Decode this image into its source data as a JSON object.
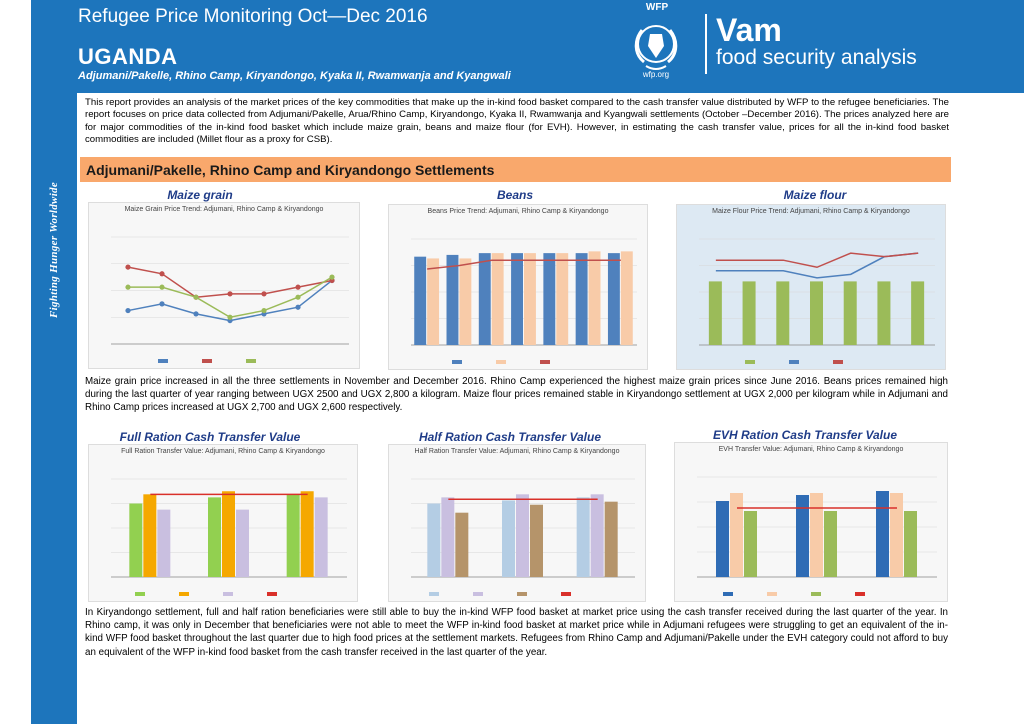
{
  "header": {
    "title": "Refugee Price Monitoring Oct—Dec 2016",
    "country": "UGANDA",
    "subtitle": "Adjumani/Pakelle, Rhino Camp, Kiryandongo, Kyaka II, Rwamwanja and Kyangwali",
    "wfp_name": "WFP",
    "wfp_url": "wfp.org",
    "brand": "Vam",
    "brand_sub": "food security analysis"
  },
  "sidebar": {
    "tagline": "Fighting Hunger Worldwide"
  },
  "intro": "This report provides an analysis of the market prices of the key commodities that make up the in-kind food basket compared to the cash transfer value distributed by WFP to the refugee beneficiaries. The report focuses on price data collected from Adjumani/Pakelle, Arua/Rhino Camp, Kiryandongo, Kyaka II, Rwamwanja and Kyangwali settlements (October –December 2016). The prices analyzed here are for major commodities of the in-kind food basket which include maize grain, beans and maize flour (for EVH). However, in estimating the cash transfer value, prices for all the in-kind food basket commodities are included (Millet flour as a proxy for CSB).",
  "section": {
    "title": "Adjumani/Pakelle,  Rhino Camp and Kiryandongo Settlements"
  },
  "chart_titles": {
    "maize_grain": "Maize grain",
    "beans": "Beans",
    "maize_flour": "Maize flour",
    "full_ration": "Full Ration Cash Transfer Value",
    "half_ration": "Half Ration Cash Transfer Value",
    "evh_ration": "EVH Ration Cash Transfer Value"
  },
  "chart_captions": {
    "maize_grain": "Maize Grain Price Trend: Adjumani, Rhino Camp & Kiryandongo",
    "beans": "Beans Price Trend: Adjumani, Rhino Camp & Kiryandongo",
    "maize_flour": "Maize Flour Price Trend: Adjumani, Rhino Camp & Kiryandongo",
    "full_ration": "Full Ration Transfer Value: Adjumani, Rhino Camp & Kiryandongo",
    "half_ration": "Half Ration Transfer Value: Adjumani, Rhino Camp & Kiryandongo",
    "evh_ration": "EVH Transfer Value: Adjumani, Rhino Camp & Kiryandongo"
  },
  "colors": {
    "brand_blue": "#1d75bc",
    "section_orange": "#f9a86c",
    "chart_title_blue": "#1f3c88",
    "red_line": "#d9302a"
  },
  "chart_data": [
    {
      "id": "maize_grain",
      "type": "line",
      "series": [
        {
          "values": [
            1100,
            1200,
            1050,
            950,
            1050,
            1150,
            1550
          ],
          "color": "#4f81bd"
        },
        {
          "values": [
            1750,
            1650,
            1300,
            1350,
            1350,
            1450,
            1550
          ],
          "color": "#c0504d"
        },
        {
          "values": [
            1450,
            1450,
            1300,
            1000,
            1100,
            1300,
            1600
          ],
          "color": "#9bbb59"
        }
      ],
      "ylim": [
        600,
        2200
      ]
    },
    {
      "id": "beans",
      "type": "bar",
      "series": [
        {
          "values": [
            2500,
            2550,
            2600,
            2600,
            2600,
            2600,
            2600
          ],
          "color": "#4f81bd",
          "kind": "bar"
        },
        {
          "values": [
            2450,
            2450,
            2600,
            2600,
            2600,
            2650,
            2650
          ],
          "color": "#f8cba8",
          "kind": "bar"
        },
        {
          "values": [
            2150,
            2250,
            2400,
            2400,
            2400,
            2400,
            2400
          ],
          "color": "#c0504d",
          "kind": "line"
        }
      ],
      "ylim": [
        0,
        3000
      ]
    },
    {
      "id": "maize_flour",
      "type": "bar",
      "series": [
        {
          "values": [
            1800,
            1800,
            1800,
            1800,
            1800,
            1800,
            1800
          ],
          "color": "#9bbb59",
          "kind": "bar"
        },
        {
          "values": [
            2100,
            2100,
            2100,
            1900,
            2000,
            2500,
            2600
          ],
          "color": "#4f81bd",
          "kind": "line"
        },
        {
          "values": [
            2400,
            2400,
            2400,
            2200,
            2600,
            2500,
            2600
          ],
          "color": "#c0504d",
          "kind": "line"
        }
      ],
      "ylim": [
        0,
        3000
      ]
    },
    {
      "id": "full_ration",
      "type": "bar",
      "series": [
        {
          "values": [
            24,
            26,
            27
          ],
          "color": "#92d050",
          "kind": "bar"
        },
        {
          "values": [
            27,
            28,
            28
          ],
          "color": "#f5a800",
          "kind": "bar"
        },
        {
          "values": [
            22,
            22,
            26
          ],
          "color": "#c9bfe0",
          "kind": "bar"
        },
        {
          "values": [
            27,
            27,
            27
          ],
          "color": "#d9302a",
          "kind": "line"
        }
      ],
      "ylim": [
        0,
        32
      ]
    },
    {
      "id": "half_ration",
      "type": "bar",
      "series": [
        {
          "values": [
            12000,
            12500,
            13000
          ],
          "color": "#b4cde4",
          "kind": "bar"
        },
        {
          "values": [
            13000,
            13500,
            13500
          ],
          "color": "#c9bfe0",
          "kind": "bar"
        },
        {
          "values": [
            10500,
            11800,
            12300
          ],
          "color": "#b5946a",
          "kind": "bar"
        },
        {
          "values": [
            12700,
            12700,
            12700
          ],
          "color": "#d9302a",
          "kind": "line"
        }
      ],
      "ylim": [
        0,
        16000
      ]
    },
    {
      "id": "evh_ration",
      "type": "bar",
      "series": [
        {
          "values": [
            38000,
            41000,
            43000
          ],
          "color": "#2f6cb5",
          "kind": "bar"
        },
        {
          "values": [
            42000,
            42000,
            42000
          ],
          "color": "#f8cba8",
          "kind": "bar"
        },
        {
          "values": [
            33000,
            33000,
            33000
          ],
          "color": "#9bbb59",
          "kind": "bar"
        },
        {
          "values": [
            34500,
            34500,
            34500
          ],
          "color": "#d9302a",
          "kind": "line"
        }
      ],
      "ylim": [
        0,
        50000
      ]
    }
  ],
  "paragraphs": {
    "prices": "Maize grain price increased in all the three settlements in November and December 2016. Rhino Camp experienced the highest maize grain prices since June 2016. Beans prices remained high during the last quarter of year ranging between UGX 2500 and UGX 2,800 a kilogram. Maize flour prices remained stable in Kiryandongo settlement at UGX 2,000 per kilogram while in Adjumani and Rhino Camp prices increased at UGX 2,700 and UGX 2,600 respectively.",
    "transfers": "In Kiryandongo settlement, full and half ration beneficiaries were still able to buy the in-kind WFP food basket at market price using the cash transfer received during the last quarter of the year. In Rhino camp, it was only in December that beneficiaries were not able to meet the WFP in-kind food basket at market price while in Adjumani refugees were struggling to get an equivalent of the in-kind WFP food basket throughout the last quarter due to high food prices at the settlement markets. Refugees from Rhino Camp and Adjumani/Pakelle under the EVH category could not afford to buy an equivalent of the WFP in-kind food basket from the cash transfer received in the last quarter of the year."
  }
}
